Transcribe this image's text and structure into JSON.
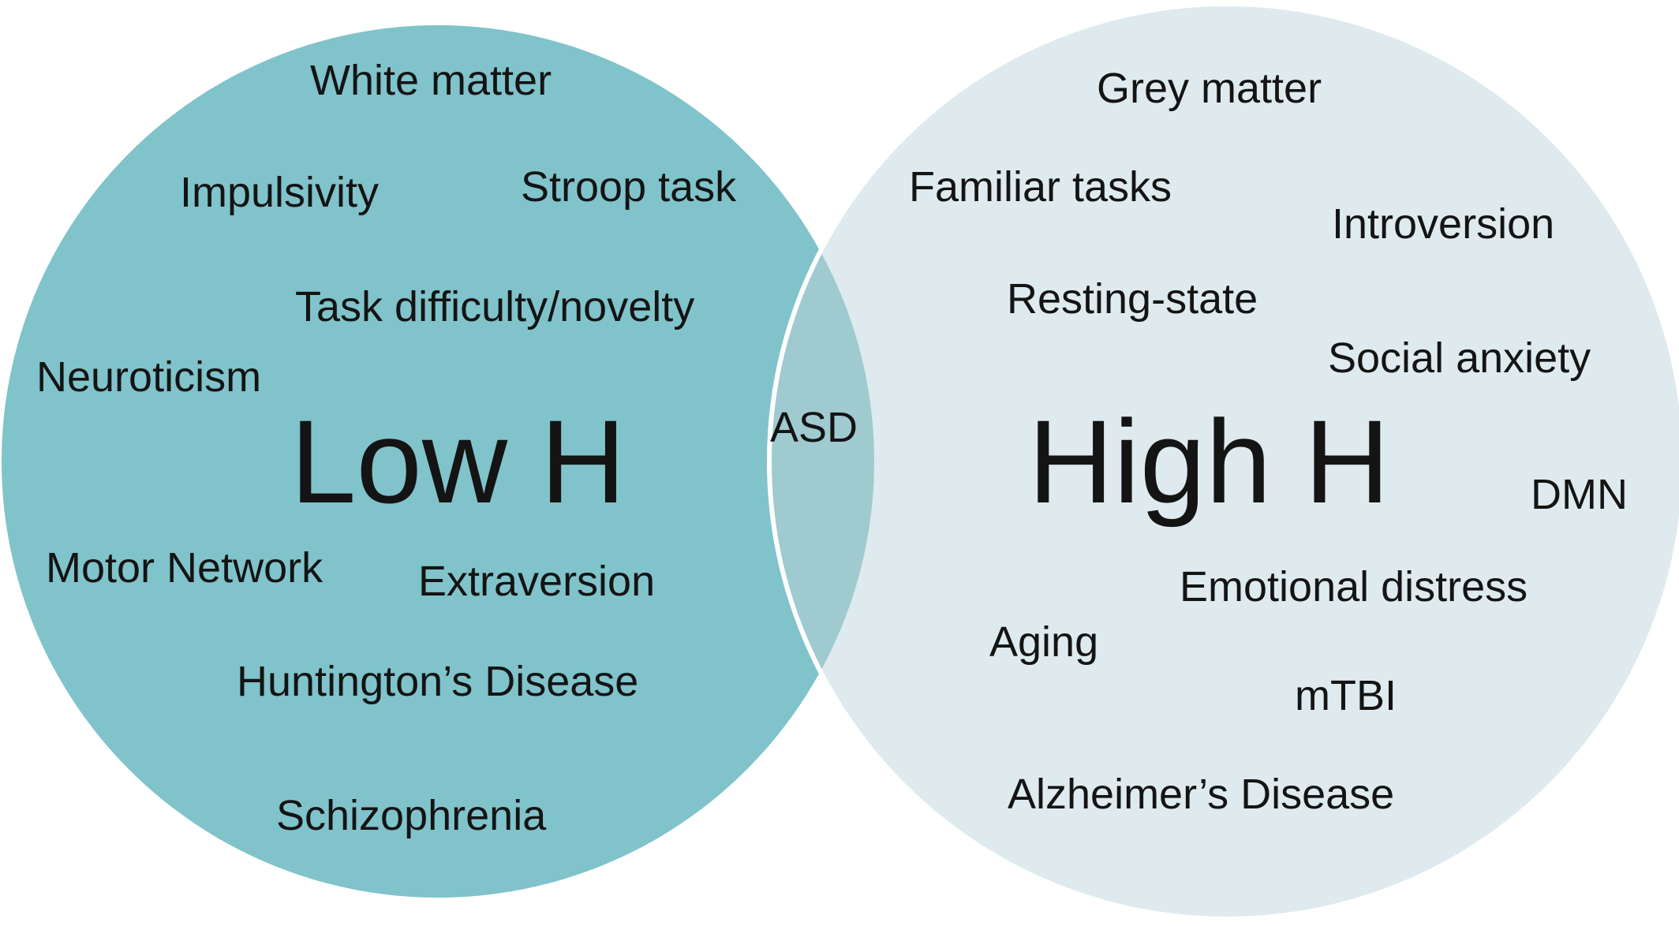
{
  "colors": {
    "low_circle": "#80c3cb",
    "high_circle": "#deeaee",
    "overlap": "#9fcad0",
    "outline": "#ffffff",
    "text": "#141414"
  },
  "low_h": {
    "title": "Low H",
    "terms": {
      "white_matter": "White matter",
      "impulsivity": "Impulsivity",
      "stroop_task": "Stroop task",
      "task_difficulty": "Task difficulty/novelty",
      "neuroticism": "Neuroticism",
      "motor_network": "Motor Network",
      "extraversion": "Extraversion",
      "huntingtons": "Huntington’s Disease",
      "schizophrenia": "Schizophrenia"
    }
  },
  "overlap": {
    "terms": {
      "asd": "ASD"
    }
  },
  "high_h": {
    "title": "High H",
    "terms": {
      "grey_matter": "Grey matter",
      "familiar_tasks": "Familiar tasks",
      "introversion": "Introversion",
      "resting_state": "Resting-state",
      "social_anxiety": "Social anxiety",
      "dmn": "DMN",
      "emotional_distress": "Emotional distress",
      "aging": "Aging",
      "mtbi": "mTBI",
      "alzheimers": "Alzheimer’s Disease"
    }
  }
}
